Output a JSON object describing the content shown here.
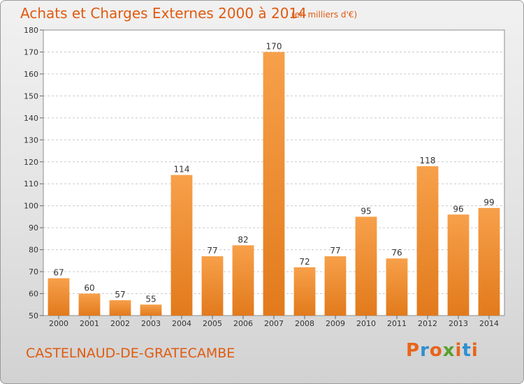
{
  "header": {
    "title": "Achats et Charges Externes 2000 à 2014",
    "subtitle": "(en milliers d'€)"
  },
  "footer": {
    "commune": "CASTELNAUD-DE-GRATECAMBE",
    "logo_text": "Proxiti",
    "logo_letters": [
      "P",
      "r",
      "o",
      "x",
      "i",
      "t",
      "i"
    ],
    "logo_colors": [
      "#e8641a",
      "#2f8fd0",
      "#e8641a",
      "#5aa02c",
      "#e8641a",
      "#2f8fd0",
      "#e8641a"
    ]
  },
  "chart_data": {
    "type": "bar",
    "title": "Achats et Charges Externes 2000 à 2014",
    "subtitle": "(en milliers d'€)",
    "categories": [
      "2000",
      "2001",
      "2002",
      "2003",
      "2004",
      "2005",
      "2006",
      "2007",
      "2008",
      "2009",
      "2010",
      "2011",
      "2012",
      "2013",
      "2014"
    ],
    "values": [
      67,
      60,
      57,
      55,
      114,
      77,
      82,
      170,
      72,
      77,
      95,
      76,
      118,
      96,
      99
    ],
    "ylim": [
      50,
      180
    ],
    "yticks": [
      50,
      60,
      70,
      80,
      90,
      100,
      110,
      120,
      130,
      140,
      150,
      160,
      170,
      180
    ],
    "grid": true,
    "data_labels": true,
    "bar_color_light": "#f7a04a",
    "bar_color_dark": "#e27a1c"
  }
}
